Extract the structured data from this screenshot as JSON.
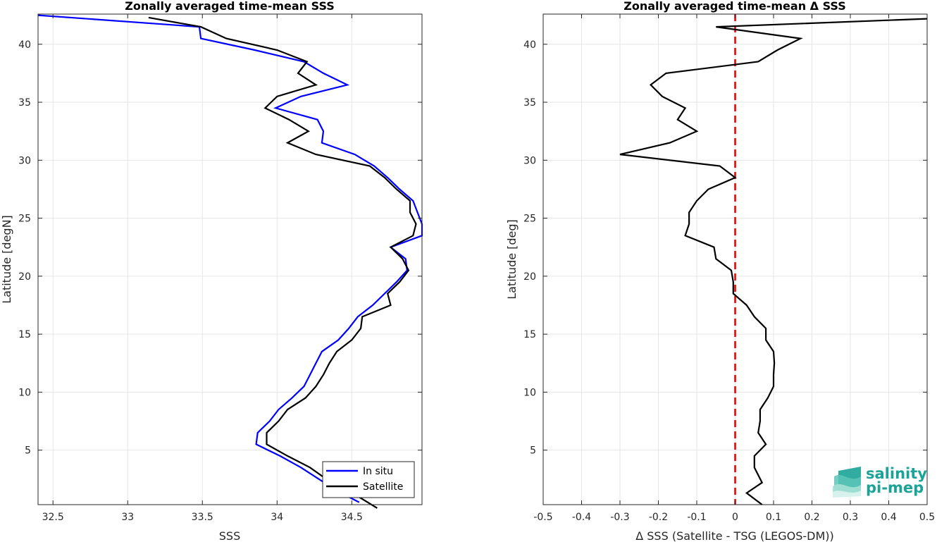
{
  "chart_data": [
    {
      "type": "line",
      "title": "Zonally averaged time-mean SSS",
      "xlabel": "SSS",
      "ylabel": "Latitude [degN]",
      "xlim": [
        32.4,
        34.97
      ],
      "ylim": [
        0.3,
        42.6
      ],
      "xticks": [
        32.5,
        33,
        33.5,
        34,
        34.5
      ],
      "xtick_labels": [
        "32.5",
        "33",
        "33.5",
        "34",
        "34.5"
      ],
      "yticks": [
        5,
        10,
        15,
        20,
        25,
        30,
        35,
        40
      ],
      "ytick_labels": [
        "5",
        "10",
        "15",
        "20",
        "25",
        "30",
        "35",
        "40"
      ],
      "grid": true,
      "legend_position": "bottom-right",
      "series": [
        {
          "name": "In situ",
          "color": "#0000ff",
          "points": [
            [
              34.55,
              0.5
            ],
            [
              34.4,
              1.5
            ],
            [
              34.28,
              2.5
            ],
            [
              34.16,
              3.5
            ],
            [
              34.02,
              4.5
            ],
            [
              33.86,
              5.5
            ],
            [
              33.87,
              6.5
            ],
            [
              33.95,
              7.5
            ],
            [
              34.01,
              8.5
            ],
            [
              34.1,
              9.5
            ],
            [
              34.18,
              10.5
            ],
            [
              34.22,
              11.5
            ],
            [
              34.26,
              12.5
            ],
            [
              34.3,
              13.5
            ],
            [
              34.41,
              14.5
            ],
            [
              34.48,
              15.5
            ],
            [
              34.54,
              16.5
            ],
            [
              34.64,
              17.5
            ],
            [
              34.72,
              18.5
            ],
            [
              34.8,
              19.5
            ],
            [
              34.87,
              20.5
            ],
            [
              34.86,
              21.5
            ],
            [
              34.76,
              22.5
            ],
            [
              34.97,
              23.5
            ],
            [
              34.97,
              24.5
            ],
            [
              34.94,
              25.5
            ],
            [
              34.91,
              26.5
            ],
            [
              34.82,
              27.5
            ],
            [
              34.74,
              28.5
            ],
            [
              34.65,
              29.5
            ],
            [
              34.52,
              30.5
            ],
            [
              34.3,
              31.5
            ],
            [
              34.31,
              32.5
            ],
            [
              34.27,
              33.5
            ],
            [
              33.99,
              34.5
            ],
            [
              34.16,
              35.5
            ],
            [
              34.47,
              36.5
            ],
            [
              34.31,
              37.5
            ],
            [
              34.18,
              38.5
            ],
            [
              33.85,
              39.5
            ],
            [
              33.49,
              40.5
            ],
            [
              33.48,
              41.5
            ],
            [
              32.4,
              42.5
            ]
          ]
        },
        {
          "name": "Satellite",
          "color": "#000000",
          "points": [
            [
              34.67,
              0.0
            ],
            [
              34.48,
              1.5
            ],
            [
              34.33,
              2.5
            ],
            [
              34.22,
              3.5
            ],
            [
              34.07,
              4.5
            ],
            [
              33.93,
              5.5
            ],
            [
              33.93,
              6.5
            ],
            [
              34.01,
              7.5
            ],
            [
              34.07,
              8.5
            ],
            [
              34.19,
              9.5
            ],
            [
              34.26,
              10.5
            ],
            [
              34.31,
              11.5
            ],
            [
              34.35,
              12.5
            ],
            [
              34.4,
              13.5
            ],
            [
              34.5,
              14.5
            ],
            [
              34.56,
              15.5
            ],
            [
              34.57,
              16.5
            ],
            [
              34.76,
              17.5
            ],
            [
              34.74,
              18.5
            ],
            [
              34.82,
              19.5
            ],
            [
              34.88,
              20.5
            ],
            [
              34.84,
              21.5
            ],
            [
              34.76,
              22.5
            ],
            [
              34.91,
              23.5
            ],
            [
              34.93,
              24.5
            ],
            [
              34.89,
              25.5
            ],
            [
              34.89,
              26.5
            ],
            [
              34.8,
              27.5
            ],
            [
              34.72,
              28.5
            ],
            [
              34.62,
              29.5
            ],
            [
              34.26,
              30.5
            ],
            [
              34.07,
              31.5
            ],
            [
              34.21,
              32.5
            ],
            [
              34.08,
              33.5
            ],
            [
              33.92,
              34.5
            ],
            [
              34.0,
              35.5
            ],
            [
              34.26,
              36.5
            ],
            [
              34.14,
              37.5
            ],
            [
              34.2,
              38.5
            ],
            [
              34.0,
              39.5
            ],
            [
              33.66,
              40.5
            ],
            [
              33.49,
              41.5
            ],
            [
              33.14,
              42.3
            ]
          ]
        }
      ]
    },
    {
      "type": "line",
      "title": "Zonally averaged time-mean Δ SSS",
      "xlabel": "Δ SSS (Satellite - TSG (LEGOS-DM))",
      "ylabel": "Latitude [deg]",
      "xlim": [
        -0.5,
        0.5
      ],
      "ylim": [
        0.3,
        42.6
      ],
      "xticks": [
        -0.5,
        -0.4,
        -0.3,
        -0.2,
        -0.1,
        0,
        0.1,
        0.2,
        0.3,
        0.4,
        0.5
      ],
      "xtick_labels": [
        "-0.5",
        "-0.4",
        "-0.3",
        "-0.2",
        "-0.1",
        "0",
        "0.1",
        "0.2",
        "0.3",
        "0.4",
        "0.5"
      ],
      "yticks": [
        5,
        10,
        15,
        20,
        25,
        30,
        35,
        40
      ],
      "ytick_labels": [
        "5",
        "10",
        "15",
        "20",
        "25",
        "30",
        "35",
        "40"
      ],
      "grid": true,
      "reference_line": {
        "x": 0,
        "color": "#e00000",
        "style": "dashed"
      },
      "series": [
        {
          "color": "#000000",
          "points": [
            [
              0.07,
              0.3
            ],
            [
              0.03,
              1.3
            ],
            [
              0.07,
              2.2
            ],
            [
              0.05,
              3.5
            ],
            [
              0.05,
              4.5
            ],
            [
              0.08,
              5.5
            ],
            [
              0.06,
              6.5
            ],
            [
              0.065,
              7.5
            ],
            [
              0.065,
              8.5
            ],
            [
              0.085,
              9.5
            ],
            [
              0.1,
              10.5
            ],
            [
              0.1,
              11.5
            ],
            [
              0.102,
              12.5
            ],
            [
              0.1,
              13.5
            ],
            [
              0.08,
              14.5
            ],
            [
              0.08,
              15.5
            ],
            [
              0.05,
              16.5
            ],
            [
              0.03,
              17.5
            ],
            [
              -0.005,
              18.5
            ],
            [
              -0.005,
              19.5
            ],
            [
              -0.01,
              20.5
            ],
            [
              -0.05,
              21.5
            ],
            [
              -0.055,
              22.5
            ],
            [
              -0.13,
              23.5
            ],
            [
              -0.12,
              24.5
            ],
            [
              -0.12,
              25.5
            ],
            [
              -0.1,
              26.5
            ],
            [
              -0.07,
              27.5
            ],
            [
              0.0,
              28.5
            ],
            [
              -0.04,
              29.5
            ],
            [
              -0.3,
              30.5
            ],
            [
              -0.17,
              31.5
            ],
            [
              -0.1,
              32.5
            ],
            [
              -0.15,
              33.5
            ],
            [
              -0.13,
              34.5
            ],
            [
              -0.19,
              35.5
            ],
            [
              -0.22,
              36.5
            ],
            [
              -0.18,
              37.5
            ],
            [
              0.06,
              38.5
            ],
            [
              0.11,
              39.5
            ],
            [
              0.17,
              40.5
            ],
            [
              -0.05,
              41.5
            ],
            [
              0.5,
              42.2
            ]
          ]
        }
      ]
    }
  ],
  "legend": [
    {
      "name": "In situ",
      "color": "#0000ff"
    },
    {
      "name": "Satellite",
      "color": "#000000"
    }
  ],
  "logo": {
    "line1": "salinity",
    "line2": "pi-mep",
    "color": "#1aa396"
  },
  "colors": {
    "axis": "#262626",
    "grid": "#e6e6e6",
    "insitu": "#0000ff",
    "satellite": "#000000",
    "zero_line": "#e00000"
  }
}
